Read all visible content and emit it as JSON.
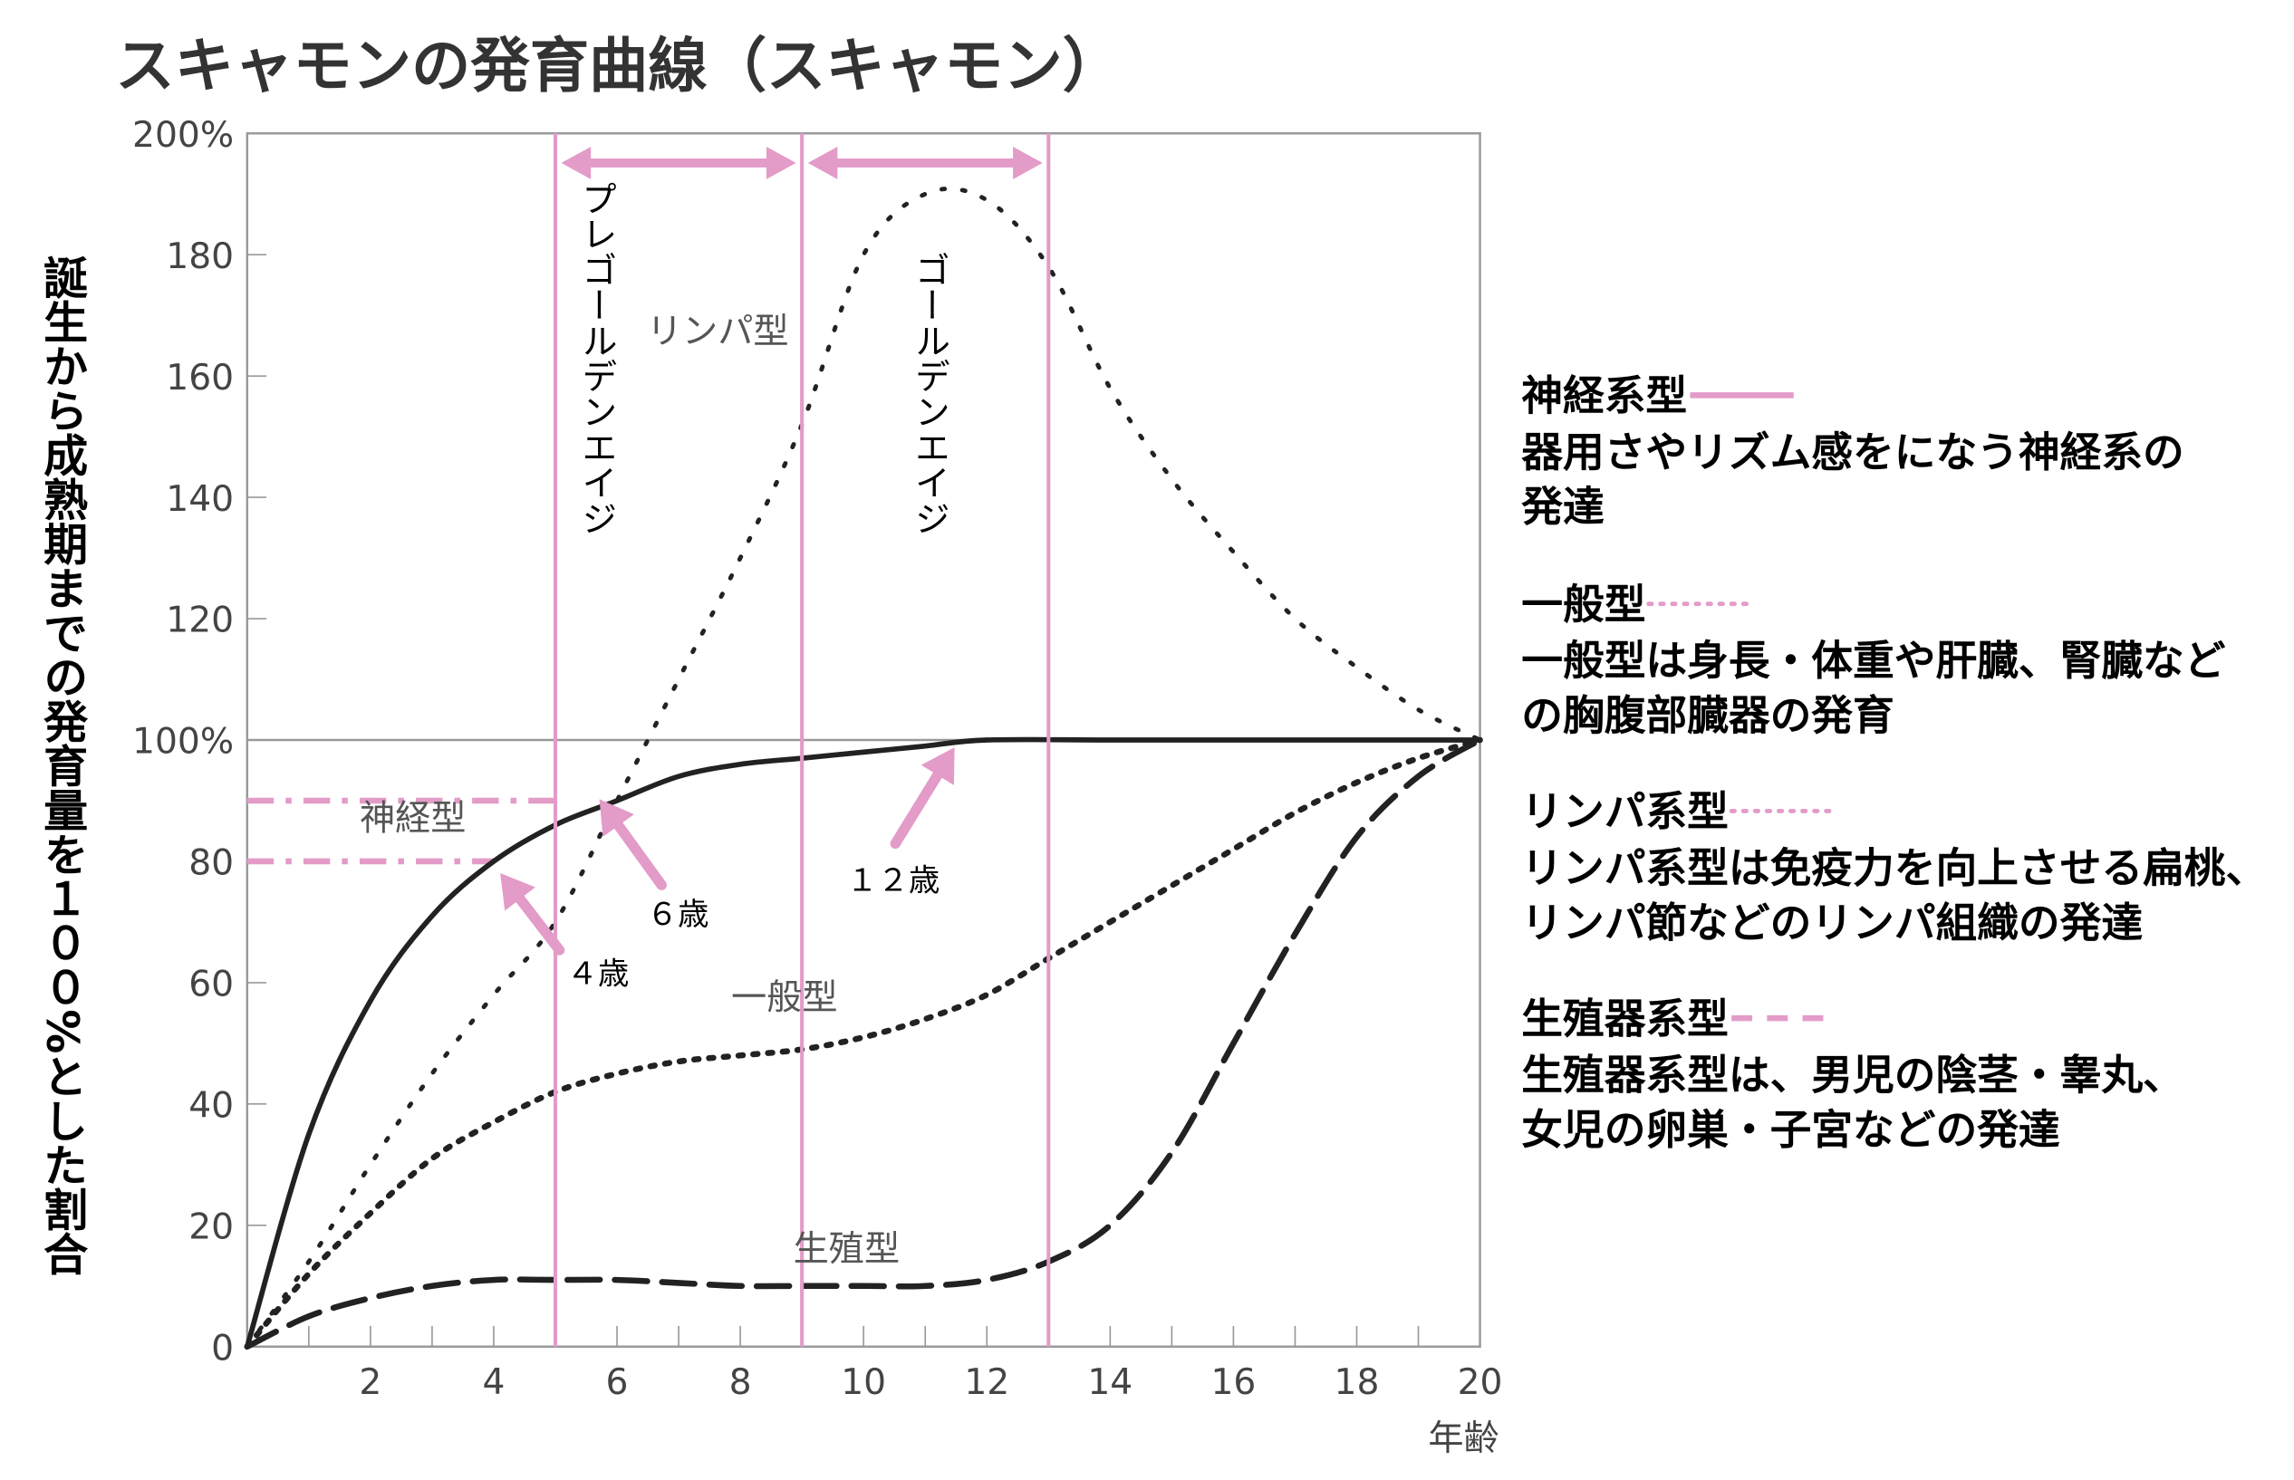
{
  "chart_data": {
    "type": "line",
    "title": "スキャモンの発育曲線（スキャモン）",
    "ylabel": "誕生から成熟期までの発育量を１００%とした割合",
    "xlabel": "年齢",
    "xlim": [
      0,
      20
    ],
    "ylim": [
      0,
      200
    ],
    "x_ticks": [
      "2",
      "4",
      "6",
      "8",
      "10",
      "12",
      "14",
      "16",
      "18",
      "20"
    ],
    "y_ticks": [
      "0",
      "20",
      "40",
      "60",
      "80",
      "100%",
      "120",
      "140",
      "160",
      "180",
      "200%"
    ],
    "grid": false,
    "series": [
      {
        "name": "神経型",
        "style": "solid",
        "x": [
          0,
          1,
          2,
          3,
          4,
          5,
          6,
          7,
          8,
          9,
          10,
          11,
          12,
          14,
          16,
          18,
          20
        ],
        "y": [
          0,
          35,
          57,
          71,
          80,
          86,
          90,
          94,
          96,
          97,
          98,
          99,
          100,
          100,
          100,
          100,
          100
        ]
      },
      {
        "name": "一般型",
        "style": "dotted-dense",
        "x": [
          0,
          1,
          2,
          3,
          4,
          5,
          6,
          7,
          8,
          9,
          10,
          11,
          12,
          13,
          14,
          15,
          16,
          17,
          18,
          19,
          20
        ],
        "y": [
          0,
          12,
          22,
          31,
          37,
          42,
          45,
          47,
          48,
          49,
          51,
          54,
          58,
          64,
          70,
          76,
          82,
          88,
          93,
          97,
          100
        ]
      },
      {
        "name": "リンパ型",
        "style": "dotted-sparse",
        "x": [
          0,
          1,
          2,
          3,
          4,
          5,
          6,
          7,
          8,
          9,
          10,
          11,
          12,
          13,
          14,
          15,
          16,
          17,
          18,
          19,
          20
        ],
        "y": [
          0,
          14,
          30,
          45,
          58,
          70,
          90,
          110,
          130,
          152,
          180,
          190,
          189,
          178,
          158,
          143,
          131,
          120,
          112,
          105,
          100
        ]
      },
      {
        "name": "生殖型",
        "style": "dashed",
        "x": [
          0,
          1,
          2,
          3,
          4,
          5,
          6,
          7,
          8,
          9,
          10,
          11,
          12,
          13,
          14,
          15,
          16,
          17,
          18,
          19,
          20
        ],
        "y": [
          0,
          5,
          8,
          10,
          11,
          11,
          11,
          10.5,
          10,
          10,
          10,
          10,
          11,
          14,
          20,
          32,
          50,
          68,
          84,
          94,
          100
        ]
      }
    ],
    "annotations": {
      "periods": [
        {
          "label": "プレゴールデンエイジ",
          "from": 5,
          "to": 9
        },
        {
          "label": "ゴールデンエイジ",
          "from": 9,
          "to": 13
        }
      ],
      "reference_lines": [
        90,
        80
      ],
      "arrows": [
        {
          "label": "４歳",
          "x": 4,
          "y": 80
        },
        {
          "label": "６歳",
          "x": 5.7,
          "y": 90
        },
        {
          "label": "１２歳",
          "x": 11.5,
          "y": 100
        }
      ],
      "accent_color": "#e39bc8"
    }
  },
  "legend": [
    {
      "title": "神経系型",
      "style": "solid",
      "lines": [
        "器用さやリズム感をになう神経系の",
        "発達"
      ]
    },
    {
      "title": "一般型",
      "style": "dotted",
      "lines": [
        "一般型は身長・体重や肝臓、腎臓など",
        "の胸腹部臓器の発育"
      ]
    },
    {
      "title": "リンパ系型",
      "style": "dotted",
      "lines": [
        "リンパ系型は免疫力を向上させる扁桃、",
        "リンパ節などのリンパ組織の発達"
      ]
    },
    {
      "title": "生殖器系型",
      "style": "dashed",
      "lines": [
        "生殖器系型は、男児の陰茎・睾丸、",
        "女児の卵巣・子宮などの発達"
      ]
    }
  ]
}
